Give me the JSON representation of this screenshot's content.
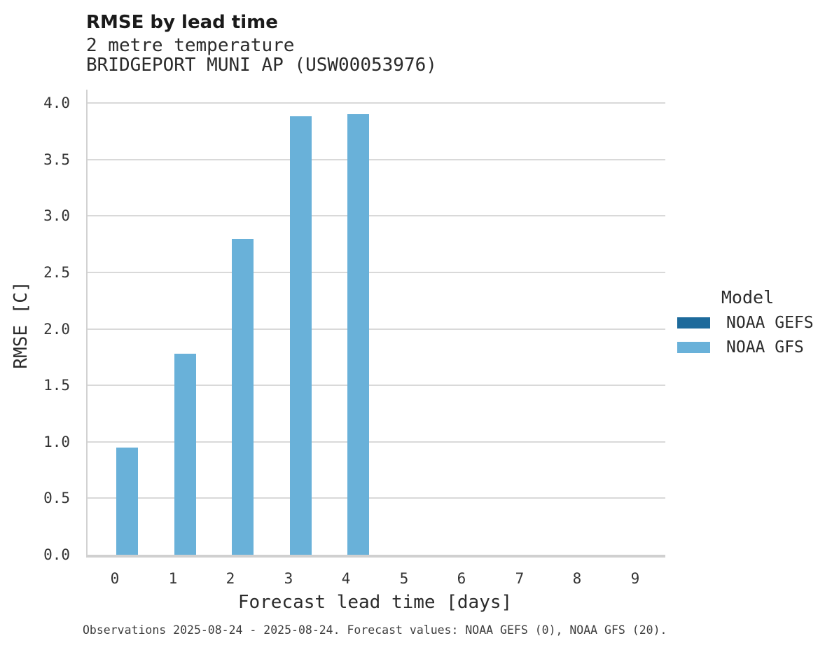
{
  "header": {
    "title": "RMSE by lead time",
    "subtitle_line1": "2 metre temperature",
    "subtitle_line2": "BRIDGEPORT MUNI AP (USW00053976)"
  },
  "chart_data": {
    "type": "bar",
    "title": "RMSE by lead time",
    "subtitle": [
      "2 metre temperature",
      "BRIDGEPORT MUNI AP (USW00053976)"
    ],
    "categories": [
      "0",
      "1",
      "2",
      "3",
      "4",
      "5",
      "6",
      "7",
      "8",
      "9"
    ],
    "series": [
      {
        "name": "NOAA GEFS",
        "color": "#1d6a9b",
        "values": [
          null,
          null,
          null,
          null,
          null,
          null,
          null,
          null,
          null,
          null
        ]
      },
      {
        "name": "NOAA GFS",
        "color": "#69b1d9",
        "values": [
          0.95,
          1.78,
          2.8,
          3.88,
          3.9,
          null,
          null,
          null,
          null,
          null
        ]
      }
    ],
    "xlabel": "Forecast lead time [days]",
    "ylabel": "RMSE [C]",
    "ylim": [
      0,
      4.0
    ],
    "yticks": [
      "0.0",
      "0.5",
      "1.0",
      "1.5",
      "2.0",
      "2.5",
      "3.0",
      "3.5",
      "4.0"
    ],
    "grid": true,
    "bar_layout": "dodge",
    "legend_position": "right"
  },
  "legend": {
    "title": "Model",
    "items": [
      {
        "label": "NOAA GEFS",
        "color": "#1d6a9b"
      },
      {
        "label": "NOAA GFS",
        "color": "#69b1d9"
      }
    ]
  },
  "footer": {
    "text": "Observations 2025-08-24 - 2025-08-24. Forecast values: NOAA GEFS (0), NOAA GFS (20)."
  }
}
